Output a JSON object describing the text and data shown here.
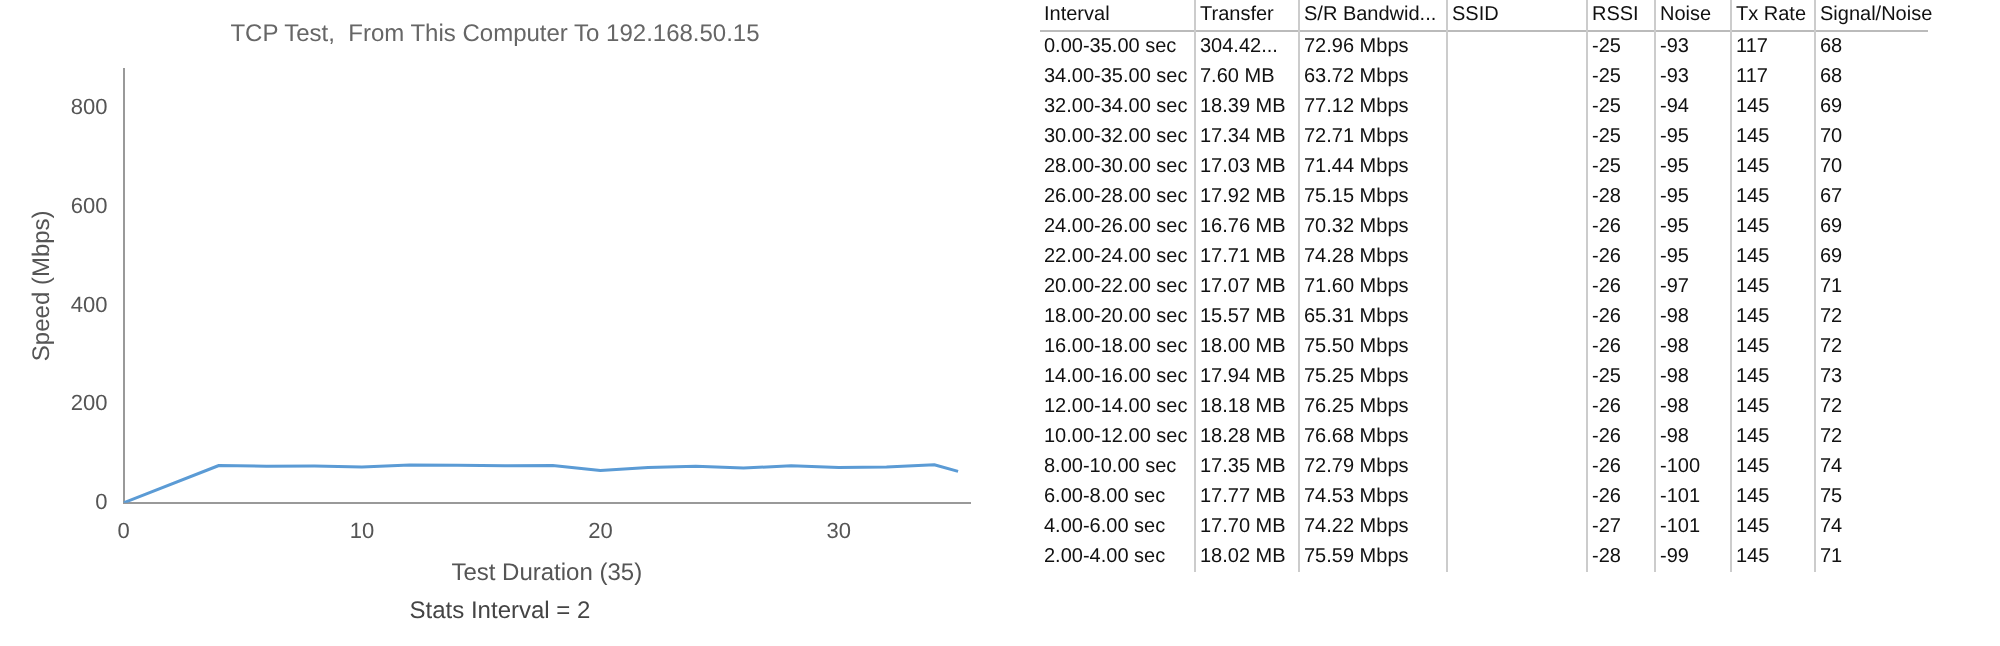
{
  "chart_data": [
    {
      "type": "line",
      "title": "TCP Test,  From This Computer To 192.168.50.15",
      "xlabel": "Test Duration (35)",
      "ylabel": "Speed (Mbps)",
      "annotations": [
        "Stats Interval = 2"
      ],
      "series": [
        {
          "color": "#5b9bd5",
          "x": [
            0,
            4,
            6,
            8,
            10,
            12,
            14,
            16,
            18,
            20,
            22,
            24,
            26,
            28,
            30,
            32,
            34,
            35
          ],
          "values": [
            0,
            75.59,
            74.22,
            74.53,
            72.79,
            76.68,
            76.25,
            75.25,
            75.5,
            65.31,
            71.6,
            74.28,
            70.32,
            75.15,
            71.44,
            72.71,
            77.12,
            63.72
          ]
        }
      ],
      "xlim": [
        0,
        35.5
      ],
      "xticks": [
        0,
        10,
        20,
        30
      ],
      "ylim": [
        0,
        880
      ],
      "yticks": [
        0,
        200,
        400,
        600,
        800
      ],
      "grid": false,
      "legend": false,
      "marker": "none",
      "line_style": "solid"
    },
    {
      "type": "heatmap",
      "ylabel": "Interval",
      "categories": [
        "Transfer",
        "S/R Bandwid...",
        "SSID",
        "RSSI",
        "Noise",
        "Tx Rate",
        "Signal/Noise"
      ],
      "y_categories": [
        "0.00-35.00 sec",
        "34.00-35.00 sec",
        "32.00-34.00 sec",
        "30.00-32.00 sec",
        "28.00-30.00 sec",
        "26.00-28.00 sec",
        "24.00-26.00 sec",
        "22.00-24.00 sec",
        "20.00-22.00 sec",
        "18.00-20.00 sec",
        "16.00-18.00 sec",
        "14.00-16.00 sec",
        "12.00-14.00 sec",
        "10.00-12.00 sec",
        "8.00-10.00 sec",
        "6.00-8.00 sec",
        "4.00-6.00 sec",
        "2.00-4.00 sec"
      ],
      "cells": [
        [
          null,
          72.96,
          null,
          -25,
          -93,
          117,
          68
        ],
        [
          7.6,
          63.72,
          null,
          -25,
          -93,
          117,
          68
        ],
        [
          18.39,
          77.12,
          null,
          -25,
          -94,
          145,
          69
        ],
        [
          17.34,
          72.71,
          null,
          -25,
          -95,
          145,
          70
        ],
        [
          17.03,
          71.44,
          null,
          -25,
          -95,
          145,
          70
        ],
        [
          17.92,
          75.15,
          null,
          -28,
          -95,
          145,
          67
        ],
        [
          16.76,
          70.32,
          null,
          -26,
          -95,
          145,
          69
        ],
        [
          17.71,
          74.28,
          null,
          -26,
          -95,
          145,
          69
        ],
        [
          17.07,
          71.6,
          null,
          -26,
          -97,
          145,
          71
        ],
        [
          15.57,
          65.31,
          null,
          -26,
          -98,
          145,
          72
        ],
        [
          18.0,
          75.5,
          null,
          -26,
          -98,
          145,
          72
        ],
        [
          17.94,
          75.25,
          null,
          -25,
          -98,
          145,
          73
        ],
        [
          18.18,
          76.25,
          null,
          -26,
          -98,
          145,
          72
        ],
        [
          18.28,
          76.68,
          null,
          -26,
          -98,
          145,
          72
        ],
        [
          17.35,
          72.79,
          null,
          -26,
          -100,
          145,
          74
        ],
        [
          17.77,
          74.53,
          null,
          -26,
          -101,
          145,
          75
        ],
        [
          17.7,
          74.22,
          null,
          -27,
          -101,
          145,
          74
        ],
        [
          18.02,
          75.59,
          null,
          -28,
          -99,
          145,
          71
        ]
      ],
      "cell_labels": [
        [
          "304.42...",
          "72.96 Mbps",
          null,
          "-25",
          "-93",
          "117",
          "68"
        ],
        [
          "7.60 MB",
          "63.72 Mbps",
          null,
          "-25",
          "-93",
          "117",
          "68"
        ],
        [
          "18.39 MB",
          "77.12 Mbps",
          null,
          "-25",
          "-94",
          "145",
          "69"
        ],
        [
          "17.34 MB",
          "72.71 Mbps",
          null,
          "-25",
          "-95",
          "145",
          "70"
        ],
        [
          "17.03 MB",
          "71.44 Mbps",
          null,
          "-25",
          "-95",
          "145",
          "70"
        ],
        [
          "17.92 MB",
          "75.15 Mbps",
          null,
          "-28",
          "-95",
          "145",
          "67"
        ],
        [
          "16.76 MB",
          "70.32 Mbps",
          null,
          "-26",
          "-95",
          "145",
          "69"
        ],
        [
          "17.71 MB",
          "74.28 Mbps",
          null,
          "-26",
          "-95",
          "145",
          "69"
        ],
        [
          "17.07 MB",
          "71.60 Mbps",
          null,
          "-26",
          "-97",
          "145",
          "71"
        ],
        [
          "15.57 MB",
          "65.31 Mbps",
          null,
          "-26",
          "-98",
          "145",
          "72"
        ],
        [
          "18.00 MB",
          "75.50 Mbps",
          null,
          "-26",
          "-98",
          "145",
          "72"
        ],
        [
          "17.94 MB",
          "75.25 Mbps",
          null,
          "-25",
          "-98",
          "145",
          "73"
        ],
        [
          "18.18 MB",
          "76.25 Mbps",
          null,
          "-26",
          "-98",
          "145",
          "72"
        ],
        [
          "18.28 MB",
          "76.68 Mbps",
          null,
          "-26",
          "-98",
          "145",
          "72"
        ],
        [
          "17.35 MB",
          "72.79 Mbps",
          null,
          "-26",
          "-100",
          "145",
          "74"
        ],
        [
          "17.77 MB",
          "74.53 Mbps",
          null,
          "-26",
          "-101",
          "145",
          "75"
        ],
        [
          "17.70 MB",
          "74.22 Mbps",
          null,
          "-27",
          "-101",
          "145",
          "74"
        ],
        [
          "18.02 MB",
          "75.59 Mbps",
          null,
          "-28",
          "-99",
          "145",
          "71"
        ]
      ]
    }
  ]
}
